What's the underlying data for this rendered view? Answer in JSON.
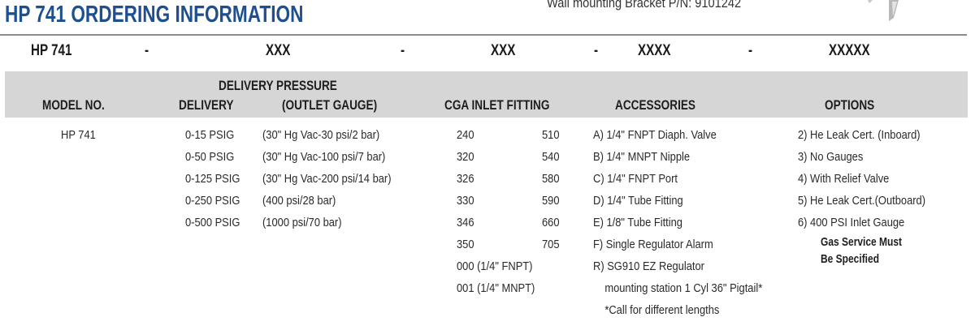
{
  "title": "HP 741 ORDERING INFORMATION",
  "bracket_text": "Wall mounting Bracket P/N: 9101242",
  "code_row": [
    "HP 741",
    "-",
    "XXX",
    "-",
    "XXX",
    "-",
    "XXXX",
    "-",
    "XXXXX"
  ],
  "headers": {
    "model": "MODEL NO.",
    "delivery_pressure": "DELIVERY PRESSURE",
    "delivery": "DELIVERY",
    "outlet_gauge": "(OUTLET GAUGE)",
    "cga": "CGA INLET FITTING",
    "accessories": "ACCESSORIES",
    "options": "OPTIONS"
  },
  "model": [
    "HP 741"
  ],
  "delivery": [
    "0-15 PSIG",
    "0-50 PSIG",
    "0-125 PSIG",
    "0-250 PSIG",
    "0-500 PSIG"
  ],
  "outlet_gauge": [
    "(30\" Hg Vac-30 psi/2 bar)",
    "(30\" Hg Vac-100 psi/7 bar)",
    "(30\" Hg Vac-200 psi/14 bar)",
    "(400 psi/28 bar)",
    "(1000 psi/70 bar)"
  ],
  "cga_left": [
    "240",
    "320",
    "326",
    "330",
    "346",
    "350",
    "000 (1/4\" FNPT)",
    "001 (1/4\" MNPT)"
  ],
  "cga_right": [
    "510",
    "540",
    "580",
    "590",
    "660",
    "705"
  ],
  "accessories": [
    "A) 1/4\" FNPT Diaph. Valve",
    "B) 1/4\" MNPT Nipple",
    "C) 1/4\" FNPT Port",
    "D) 1/4\" Tube Fitting",
    "E) 1/8\" Tube Fitting",
    "F) Single Regulator Alarm",
    "R) SG910 EZ Regulator",
    "    mounting station 1 Cyl 36\" Pigtail*",
    "    *Call for different lengths"
  ],
  "options": [
    "2) He Leak Cert. (Inboard)",
    "3) No Gauges",
    "4) With Relief Valve",
    "5) He Leak Cert.(Outboard)",
    "6) 400 PSI Inlet Gauge"
  ],
  "options_note": [
    "Gas Service Must",
    "Be Specified"
  ],
  "colors": {
    "title": "#1d4f91",
    "header_band": "#d6d6d6"
  }
}
